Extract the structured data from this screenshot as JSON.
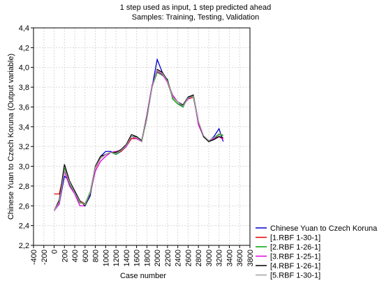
{
  "chart_data": {
    "type": "line",
    "title": "1 step used as input, 1 step predicted ahead",
    "subtitle": "Samples: Training, Testing, Validation",
    "x_label": "Case number",
    "y_label": "Chinese Yuan to Czech Koruna (Output variable)",
    "x": [
      0,
      100,
      200,
      300,
      400,
      500,
      600,
      700,
      800,
      900,
      1000,
      1100,
      1200,
      1300,
      1400,
      1500,
      1600,
      1700,
      1800,
      1900,
      2000,
      2100,
      2200,
      2300,
      2400,
      2500,
      2600,
      2700,
      2800,
      2900,
      3000,
      3100,
      3200,
      3280
    ],
    "series": [
      {
        "name": "Chinese Yuan to Czech Koruna",
        "color": "#0000d0",
        "values": [
          2.55,
          2.62,
          2.9,
          2.85,
          2.75,
          2.65,
          2.6,
          2.7,
          3.0,
          3.1,
          3.15,
          3.15,
          3.12,
          3.15,
          3.2,
          3.3,
          3.3,
          3.25,
          3.5,
          3.8,
          4.08,
          3.95,
          3.85,
          3.7,
          3.65,
          3.6,
          3.7,
          3.72,
          3.45,
          3.3,
          3.25,
          3.3,
          3.38,
          3.25
        ]
      },
      {
        "name": "[1.RBF 1-30-1]",
        "color": "#e00000",
        "values": [
          2.72,
          2.72,
          2.95,
          2.85,
          2.72,
          2.65,
          2.62,
          2.72,
          2.98,
          3.08,
          3.12,
          3.14,
          3.13,
          3.15,
          3.2,
          3.28,
          3.28,
          3.25,
          3.5,
          3.8,
          3.98,
          3.95,
          3.85,
          3.7,
          3.65,
          3.62,
          3.68,
          3.7,
          3.45,
          3.3,
          3.25,
          3.28,
          3.3,
          3.28
        ]
      },
      {
        "name": "[2.RBF 1-26-1]",
        "color": "#00a000",
        "values": [
          2.55,
          2.65,
          2.98,
          2.82,
          2.72,
          2.63,
          2.62,
          2.74,
          3.0,
          3.08,
          3.12,
          3.14,
          3.12,
          3.16,
          3.2,
          3.3,
          3.3,
          3.25,
          3.48,
          3.8,
          3.95,
          3.92,
          3.88,
          3.68,
          3.63,
          3.6,
          3.7,
          3.7,
          3.45,
          3.3,
          3.25,
          3.28,
          3.32,
          3.31
        ]
      },
      {
        "name": "[3.RBF 1-25-1]",
        "color": "#e000e0",
        "values": [
          2.55,
          2.62,
          2.95,
          2.8,
          2.72,
          2.6,
          2.6,
          2.72,
          2.95,
          3.05,
          3.1,
          3.14,
          3.15,
          3.16,
          3.2,
          3.3,
          3.28,
          3.25,
          3.52,
          3.82,
          3.96,
          3.93,
          3.85,
          3.72,
          3.65,
          3.62,
          3.68,
          3.72,
          3.42,
          3.3,
          3.26,
          3.28,
          3.3,
          3.27
        ]
      },
      {
        "name": "[4.RBF 1-26-1]",
        "color": "#000000",
        "values": [
          2.55,
          2.66,
          3.02,
          2.85,
          2.75,
          2.65,
          2.6,
          2.72,
          3.0,
          3.1,
          3.12,
          3.14,
          3.14,
          3.17,
          3.22,
          3.32,
          3.3,
          3.26,
          3.5,
          3.8,
          3.98,
          3.95,
          3.87,
          3.7,
          3.65,
          3.62,
          3.7,
          3.72,
          3.45,
          3.3,
          3.25,
          3.27,
          3.3,
          3.29
        ]
      },
      {
        "name": "[5.RBF 1-30-1]",
        "color": "#a0a0a0",
        "values": [
          2.55,
          2.64,
          2.96,
          2.84,
          2.73,
          2.64,
          2.61,
          2.73,
          2.99,
          3.08,
          3.12,
          3.14,
          3.13,
          3.16,
          3.21,
          3.3,
          3.29,
          3.25,
          3.49,
          3.8,
          3.97,
          3.94,
          3.86,
          3.7,
          3.65,
          3.61,
          3.69,
          3.71,
          3.45,
          3.31,
          3.26,
          3.29,
          3.33,
          3.32
        ]
      }
    ],
    "xlim": [
      -400,
      3800
    ],
    "xticks": [
      -400,
      -200,
      0,
      200,
      400,
      600,
      800,
      1000,
      1200,
      1400,
      1600,
      1800,
      2000,
      2200,
      2400,
      2600,
      2800,
      3000,
      3200,
      3400,
      3600,
      3800
    ],
    "ylim": [
      2.2,
      4.4
    ],
    "yticks": [
      {
        "value": 2.2,
        "label": "2,2"
      },
      {
        "value": 2.4,
        "label": "2,4"
      },
      {
        "value": 2.6,
        "label": "2,6"
      },
      {
        "value": 2.8,
        "label": "2,8"
      },
      {
        "value": 3.0,
        "label": "3,0"
      },
      {
        "value": 3.2,
        "label": "3,2"
      },
      {
        "value": 3.4,
        "label": "3,4"
      },
      {
        "value": 3.6,
        "label": "3,6"
      },
      {
        "value": 3.8,
        "label": "3,8"
      },
      {
        "value": 4.0,
        "label": "4,0"
      },
      {
        "value": 4.2,
        "label": "4,2"
      },
      {
        "value": 4.4,
        "label": "4,4"
      }
    ],
    "grid": true,
    "legend": "lower right"
  }
}
